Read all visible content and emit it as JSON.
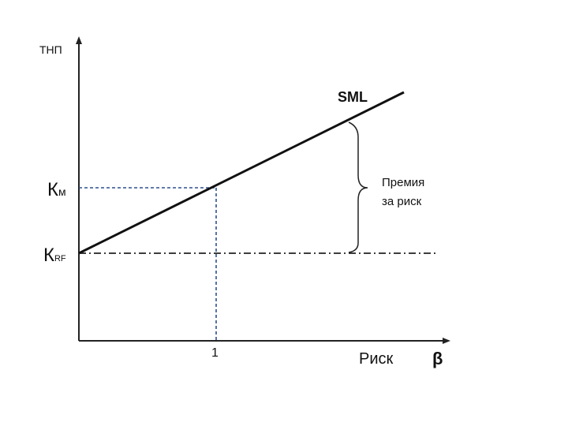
{
  "diagram": {
    "y_axis_label": "ТНП",
    "x_axis_label": "Риск",
    "x_variable": "β",
    "line_label": "SML",
    "km_label_main": "К",
    "km_label_sub": "м",
    "krf_label_main": "К",
    "krf_label_sub": "RF",
    "x_tick_label": "1",
    "premium_label_line1": "Премия",
    "premium_label_line2": "за риск",
    "colors": {
      "axis": "#222222",
      "sml_line": "#111111",
      "guide_dashed": "#2f4f8f",
      "krf_dashdot": "#222222",
      "text": "#111111"
    }
  }
}
